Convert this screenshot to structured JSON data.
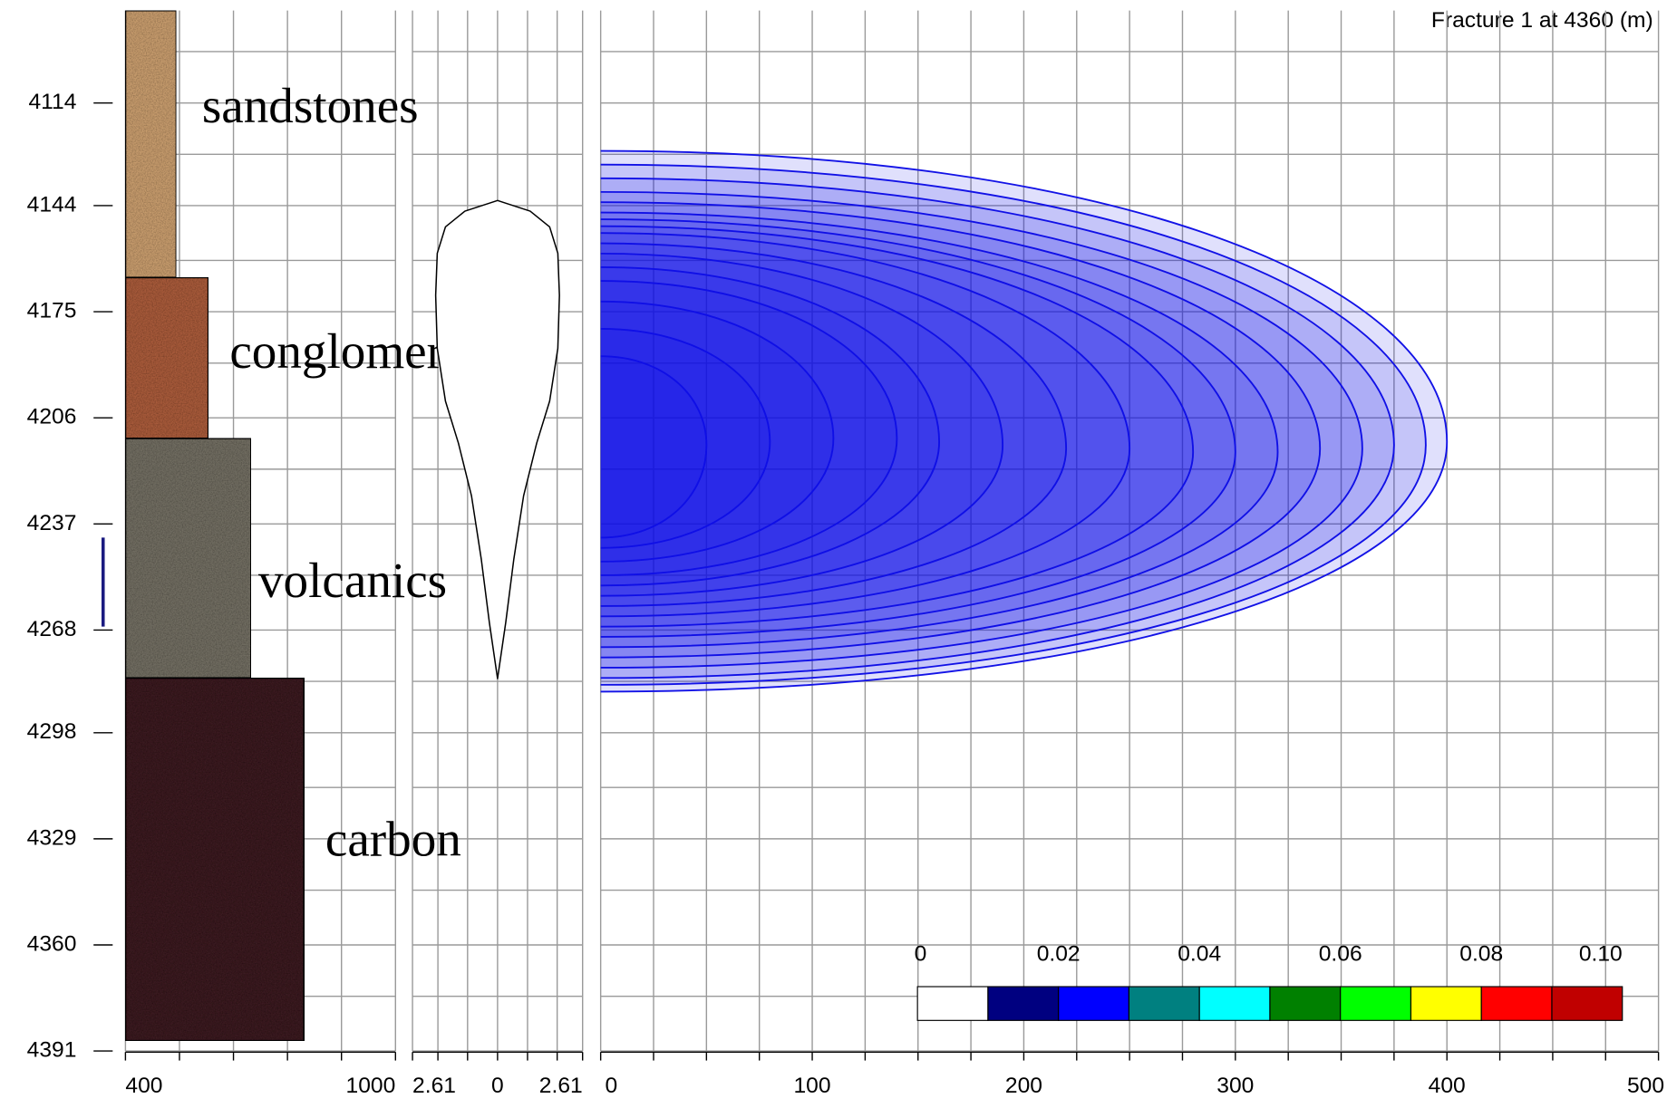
{
  "chart_data": [
    {
      "type": "lithology",
      "ylim": [
        4087,
        4391
      ],
      "yticks": [
        4114,
        4144,
        4175,
        4206,
        4237,
        4268,
        4298,
        4329,
        4360,
        4391
      ],
      "ygrid": [
        4099,
        4129,
        4160,
        4190,
        4221,
        4252,
        4283,
        4314,
        4344,
        4375
      ],
      "xlim": [
        400,
        1000
      ],
      "xticks": [
        400,
        1000
      ],
      "xgrid": [
        520,
        640,
        760,
        880
      ],
      "layers": [
        {
          "name": "sandstones",
          "top": 4087,
          "bottom": 4165,
          "value": 513,
          "color": "#c49a6c"
        },
        {
          "name": "conglomerates",
          "top": 4165,
          "bottom": 4212,
          "value": 584,
          "color": "#a65a3a"
        },
        {
          "name": "volcanics",
          "top": 4212,
          "bottom": 4282,
          "value": 679,
          "color": "#6f6c60"
        },
        {
          "name": "carbon",
          "top": 4282,
          "bottom": 4388,
          "value": 797,
          "color": "#3b1d22"
        }
      ],
      "perforation": [
        4241,
        4267
      ],
      "perforation_color": "#1a1a80"
    },
    {
      "type": "profile",
      "xlim": [
        -2.61,
        2.61
      ],
      "xticks": [
        {
          "value": -2.61,
          "label": "2.61"
        },
        0,
        2.61
      ],
      "xgrid": [
        -1.83,
        -0.92,
        0.92,
        1.83
      ],
      "depths": [
        4142.5,
        4145.6,
        4150.2,
        4157.9,
        4170.2,
        4185.7,
        4201.1,
        4213.4,
        4228.8,
        4247.3,
        4265.8,
        4282.2
      ],
      "widths": [
        0,
        1.0,
        1.6,
        1.85,
        1.9,
        1.85,
        1.6,
        1.2,
        0.8,
        0.5,
        0.25,
        0
      ]
    },
    {
      "type": "fracture",
      "title": "Fracture 1 at   4360 (m)",
      "color": "#1212e6",
      "xlim": [
        0,
        500
      ],
      "xticks": [
        0,
        100,
        200,
        300,
        400,
        500
      ],
      "xgrid": [
        25,
        50,
        75,
        125,
        150,
        175,
        225,
        250,
        275,
        325,
        350,
        375,
        425,
        450,
        475
      ],
      "contours": {
        "lengths": [
          50,
          80,
          110,
          140,
          160,
          190,
          220,
          250,
          280,
          300,
          320,
          340,
          360,
          375,
          390,
          400
        ],
        "tops": [
          4188,
          4180,
          4172,
          4166,
          4162,
          4158,
          4155,
          4152,
          4150,
          4148,
          4146,
          4143,
          4140,
          4136,
          4132,
          4128
        ],
        "bottoms": [
          4241,
          4244,
          4248,
          4252,
          4255,
          4258,
          4261,
          4264,
          4267,
          4270,
          4273,
          4276,
          4279,
          4282,
          4284,
          4286
        ],
        "tips": [
          4214,
          4213,
          4212,
          4212,
          4213,
          4214,
          4215,
          4215,
          4216,
          4216,
          4216,
          4215,
          4215,
          4214,
          4214,
          4213
        ]
      },
      "colorbar": {
        "range": [
          0,
          0.1
        ],
        "ticks": [
          0,
          0.02,
          0.04,
          0.06,
          0.08,
          {
            "value": 0.1,
            "label": "0.10"
          }
        ],
        "colors": [
          "#ffffff",
          "#000080",
          "#0000ff",
          "#008080",
          "#00ffff",
          "#008000",
          "#00ff00",
          "#ffff00",
          "#ff0000",
          "#c00000"
        ]
      }
    }
  ]
}
